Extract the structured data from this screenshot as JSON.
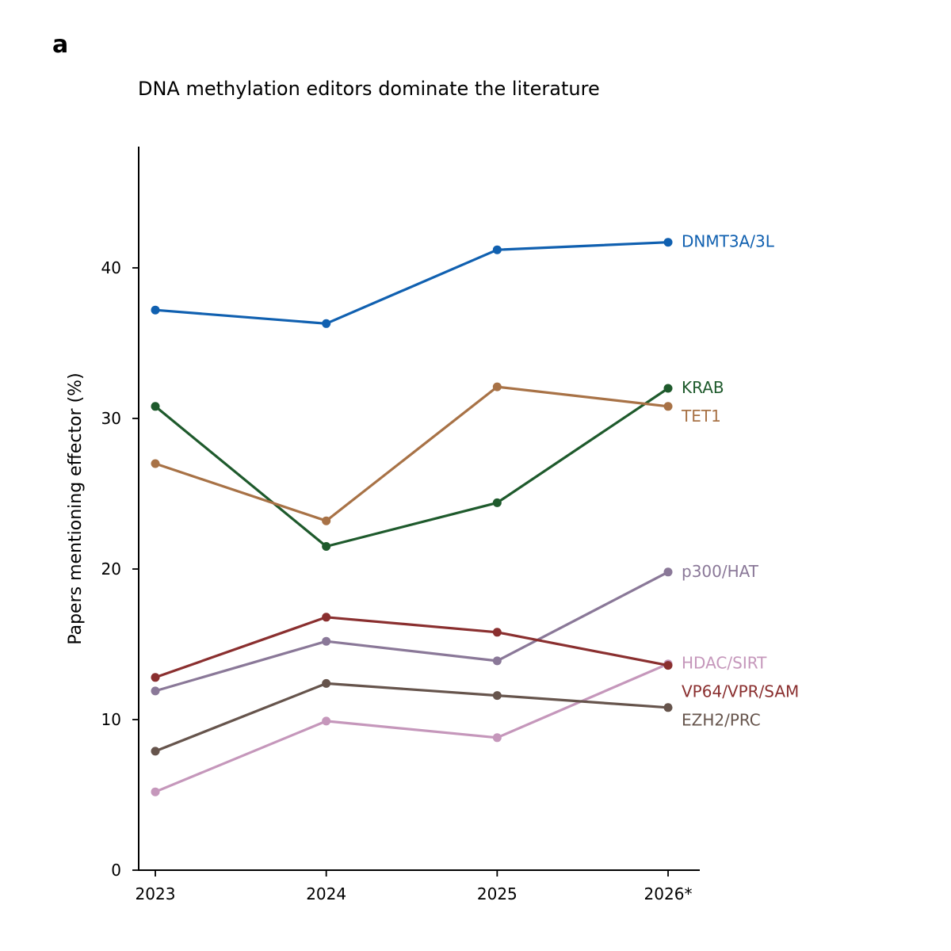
{
  "panel_label": "a",
  "chart_data": {
    "type": "line",
    "title": "DNA methylation editors dominate the literature",
    "xlabel": "",
    "ylabel": "Papers mentioning effector (%)",
    "categories": [
      "2023",
      "2024",
      "2025",
      "2026*"
    ],
    "ylim": [
      0,
      48
    ],
    "yticks": [
      0,
      10,
      20,
      30,
      40
    ],
    "grid": false,
    "legend": "direct labels at right end of lines",
    "series": [
      {
        "name": "DNMT3A/3L",
        "color": "#1060b0",
        "values": [
          37.2,
          36.3,
          41.2,
          41.7
        ]
      },
      {
        "name": "KRAB",
        "color": "#1e5a2c",
        "values": [
          30.8,
          21.5,
          24.4,
          32.0
        ]
      },
      {
        "name": "TET1",
        "color": "#a87246",
        "values": [
          27.0,
          23.2,
          32.1,
          30.8
        ]
      },
      {
        "name": "p300/HAT",
        "color": "#8a7898",
        "values": [
          11.9,
          15.2,
          13.9,
          19.8
        ]
      },
      {
        "name": "HDAC/SIRT",
        "color": "#c597bb",
        "values": [
          5.2,
          9.9,
          8.8,
          13.7
        ]
      },
      {
        "name": "VP64/VPR/SAM",
        "color": "#8a2f2f",
        "values": [
          12.8,
          16.8,
          15.8,
          13.6
        ]
      },
      {
        "name": "EZH2/PRC",
        "color": "#66544c",
        "values": [
          7.9,
          12.4,
          11.6,
          10.8
        ]
      }
    ]
  }
}
